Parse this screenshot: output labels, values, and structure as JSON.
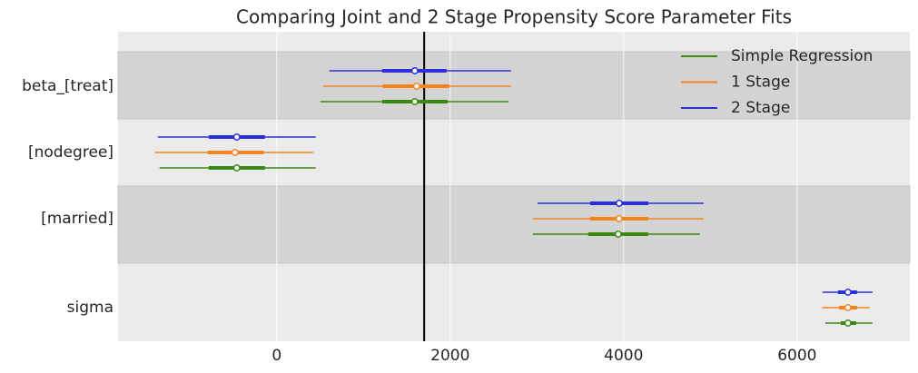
{
  "chart_data": {
    "type": "forest",
    "title": "Comparing Joint and 2 Stage Propensity Score Parameter Fits",
    "categories": [
      "beta_[treat]",
      "[nodegree]",
      "[married]",
      "sigma"
    ],
    "series": [
      {
        "name": "Simple Regression",
        "color": "#3a8a12",
        "values": [
          1592,
          -461,
          3937,
          6586
        ],
        "inner": [
          [
            1215,
            1969
          ],
          [
            -785,
            -136
          ],
          [
            3592,
            4283
          ],
          [
            6503,
            6681
          ]
        ],
        "outer": [
          [
            503,
            2670
          ],
          [
            -1351,
            450
          ],
          [
            2953,
            4880
          ],
          [
            6325,
            6869
          ]
        ]
      },
      {
        "name": "1 Stage",
        "color": "#f5821f",
        "values": [
          1613,
          -482,
          3948,
          6586
        ],
        "inner": [
          [
            1225,
            1990
          ],
          [
            -796,
            -147
          ],
          [
            3613,
            4283
          ],
          [
            6482,
            6691
          ]
        ],
        "outer": [
          [
            534,
            2702
          ],
          [
            -1403,
            419
          ],
          [
            2953,
            4921
          ],
          [
            6293,
            6838
          ]
        ]
      },
      {
        "name": "2 Stage",
        "color": "#2b2fdb",
        "values": [
          1592,
          -461,
          3948,
          6586
        ],
        "inner": [
          [
            1215,
            1958
          ],
          [
            -785,
            -136
          ],
          [
            3613,
            4283
          ],
          [
            6471,
            6691
          ]
        ],
        "outer": [
          [
            607,
            2702
          ],
          [
            -1372,
            450
          ],
          [
            3005,
            4921
          ],
          [
            6293,
            6869
          ]
        ]
      }
    ],
    "reference_line": 1700,
    "xlim": [
      -1830,
      7300
    ],
    "xticks": [
      0,
      2000,
      4000,
      6000
    ],
    "grid": true,
    "legend": "upper right"
  }
}
